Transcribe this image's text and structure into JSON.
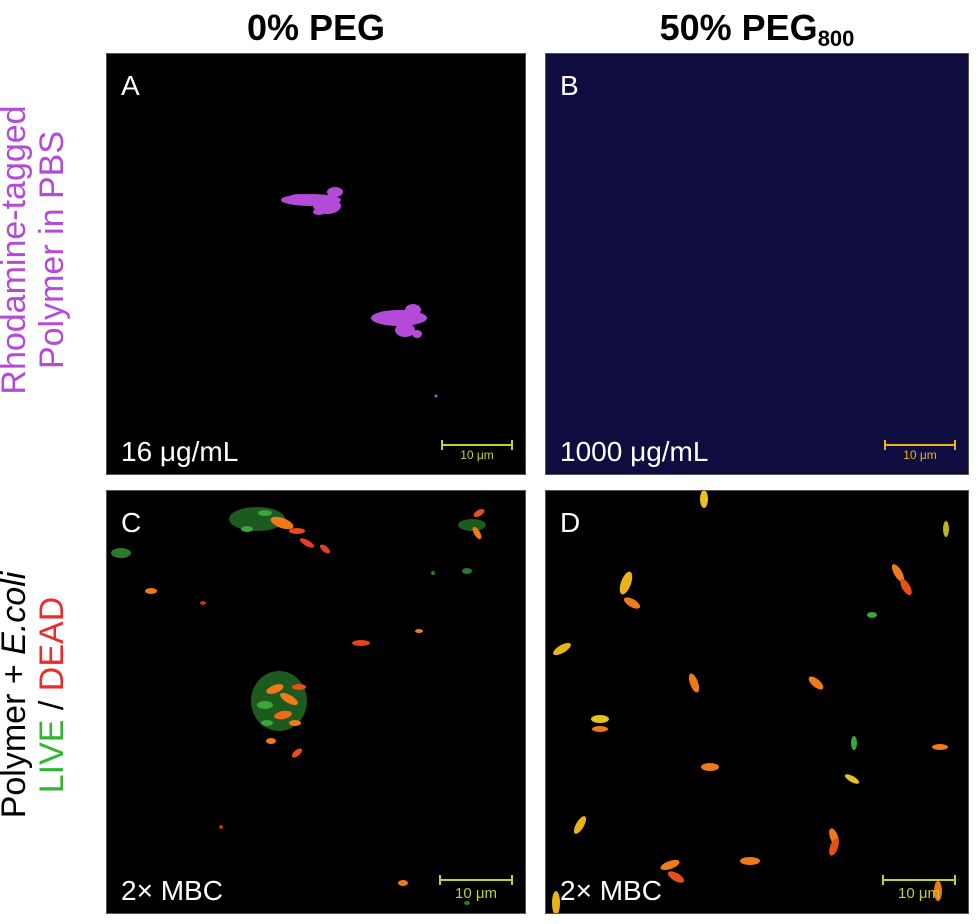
{
  "columns": {
    "left_header": "0% PEG",
    "right_header_main": "50% PEG",
    "right_header_sub": "800"
  },
  "rows": {
    "row1_line1": "Rhodamine-tagged",
    "row1_line2": "Polymer in PBS",
    "row2_line1_prefix": "Polymer + ",
    "row2_line1_italic": "E.coli",
    "row2_line2_live": "LIVE",
    "row2_line2_sep": " / ",
    "row2_line2_dead": "DEAD"
  },
  "panels": {
    "A": {
      "letter": "A",
      "concentration": "16 μg/mL",
      "scale": "10 μm"
    },
    "B": {
      "letter": "B",
      "concentration": "1000 μg/mL",
      "scale": "10 μm"
    },
    "C": {
      "letter": "C",
      "concentration": "2× MBC",
      "scale": "10 μm"
    },
    "D": {
      "letter": "D",
      "concentration": "2× MBC",
      "scale": "10 μm"
    }
  },
  "colors": {
    "rhodamine": "#b44bd8",
    "live": "#2fb52f",
    "dead": "#ee2a2a",
    "bacteria_orange": "#f07a1a",
    "bacteria_yellow": "#e8c21a",
    "panel_b_bg": "#0f0d3f"
  }
}
